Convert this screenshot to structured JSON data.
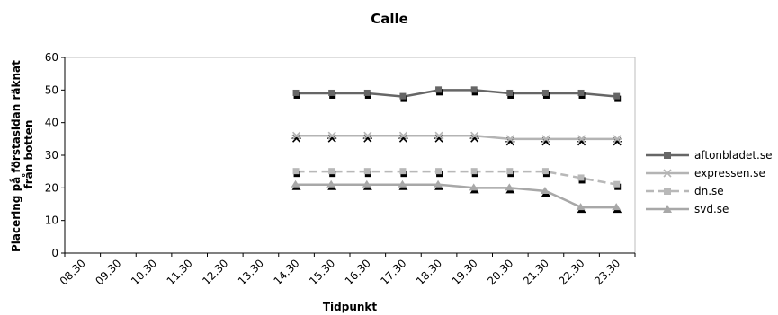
{
  "chart_data": {
    "type": "line",
    "title": "Calle",
    "xlabel": "Tidpunkt",
    "ylabel_lines": [
      "Placering på förstasidan räknat",
      "från botten"
    ],
    "ylim": [
      0,
      60
    ],
    "yticks": [
      0,
      10,
      20,
      30,
      40,
      50,
      60
    ],
    "grid": false,
    "legend_position": "right",
    "categories": [
      "08.30",
      "09.30",
      "10.30",
      "11.30",
      "12.30",
      "13.30",
      "14.30",
      "15.30",
      "16.30",
      "17.30",
      "18.30",
      "19.30",
      "20.30",
      "21.30",
      "22.30",
      "23.30"
    ],
    "series": [
      {
        "name": "aftonbladet.se",
        "color": "#666666",
        "dash": "solid",
        "marker": "square",
        "values": [
          null,
          null,
          null,
          null,
          null,
          null,
          49,
          49,
          49,
          48,
          50,
          50,
          49,
          49,
          49,
          48
        ]
      },
      {
        "name": "expressen.se",
        "color": "#b4b4b4",
        "dash": "solid",
        "marker": "asterisk",
        "values": [
          null,
          null,
          null,
          null,
          null,
          null,
          36,
          36,
          36,
          36,
          36,
          36,
          35,
          35,
          35,
          35
        ]
      },
      {
        "name": "dn.se",
        "color": "#b8b8b8",
        "dash": "dashed",
        "marker": "square",
        "values": [
          null,
          null,
          null,
          null,
          null,
          null,
          25,
          25,
          25,
          25,
          25,
          25,
          25,
          25,
          23,
          21
        ]
      },
      {
        "name": "svd.se",
        "color": "#a8a8a8",
        "dash": "solid",
        "marker": "triangle",
        "values": [
          null,
          null,
          null,
          null,
          null,
          null,
          21,
          21,
          21,
          21,
          21,
          20,
          20,
          19,
          14,
          14
        ]
      }
    ]
  }
}
